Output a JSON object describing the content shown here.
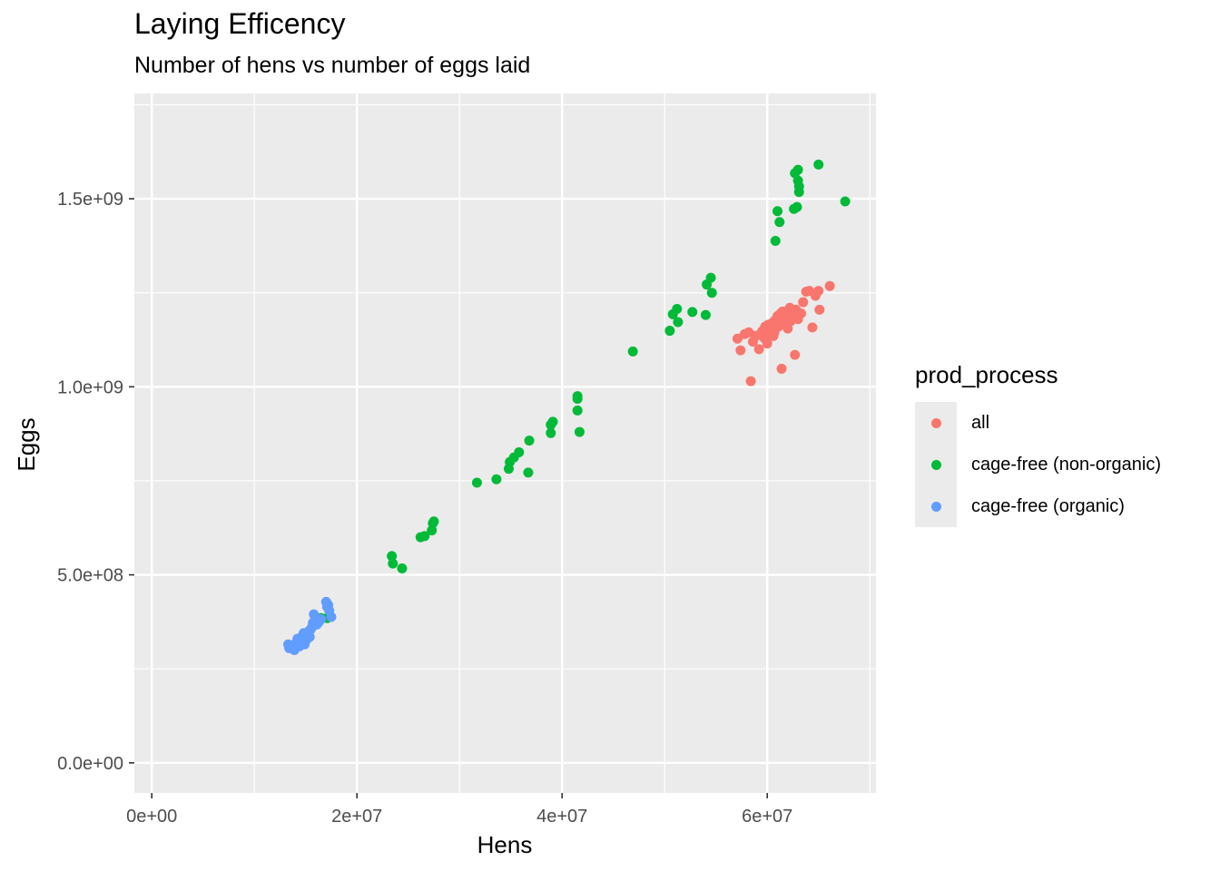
{
  "chart_data": {
    "type": "scatter",
    "title": "Laying Efficency",
    "subtitle": "Number of hens vs number of eggs laid",
    "xlabel": "Hens",
    "ylabel": "Eggs",
    "xlim": [
      -1700000,
      70600000
    ],
    "ylim": [
      -80000000,
      1780000000
    ],
    "xticks": [
      0,
      20000000,
      40000000,
      60000000
    ],
    "xtick_labels": [
      "0e+00",
      "2e+07",
      "4e+07",
      "6e+07"
    ],
    "xminor": [
      10000000,
      30000000,
      50000000,
      70000000
    ],
    "yticks": [
      0,
      500000000,
      1000000000,
      1500000000
    ],
    "ytick_labels": [
      "0.0e+00",
      "5.0e+08",
      "1.0e+09",
      "1.5e+09"
    ],
    "yminor": [
      250000000,
      750000000,
      1250000000,
      1750000000
    ],
    "grid": true,
    "legend": {
      "title": "prod_process",
      "placement": "right"
    },
    "series": [
      {
        "name": "all",
        "color": "#F8766D",
        "points": [
          [
            57100000,
            1128000000
          ],
          [
            57400000,
            1097000000
          ],
          [
            57800000,
            1140000000
          ],
          [
            58200000,
            1145000000
          ],
          [
            58400000,
            1015000000
          ],
          [
            58600000,
            1120000000
          ],
          [
            58900000,
            1136000000
          ],
          [
            59200000,
            1100000000
          ],
          [
            59500000,
            1148000000
          ],
          [
            59700000,
            1130000000
          ],
          [
            60000000,
            1115000000
          ],
          [
            60100000,
            1165000000
          ],
          [
            60300000,
            1150000000
          ],
          [
            60500000,
            1170000000
          ],
          [
            60600000,
            1135000000
          ],
          [
            60800000,
            1178000000
          ],
          [
            61000000,
            1188000000
          ],
          [
            61100000,
            1160000000
          ],
          [
            61300000,
            1195000000
          ],
          [
            61400000,
            1048000000
          ],
          [
            61600000,
            1172000000
          ],
          [
            61800000,
            1185000000
          ],
          [
            62000000,
            1155000000
          ],
          [
            62100000,
            1200000000
          ],
          [
            62300000,
            1175000000
          ],
          [
            62500000,
            1190000000
          ],
          [
            62700000,
            1085000000
          ],
          [
            62800000,
            1205000000
          ],
          [
            63000000,
            1180000000
          ],
          [
            63300000,
            1195000000
          ],
          [
            63500000,
            1225000000
          ],
          [
            63800000,
            1253000000
          ],
          [
            64100000,
            1255000000
          ],
          [
            64400000,
            1158000000
          ],
          [
            64700000,
            1242000000
          ],
          [
            65000000,
            1255000000
          ],
          [
            65100000,
            1205000000
          ],
          [
            66100000,
            1268000000
          ],
          [
            61500000,
            1200000000
          ],
          [
            62200000,
            1210000000
          ],
          [
            60700000,
            1145000000
          ],
          [
            59800000,
            1160000000
          ]
        ]
      },
      {
        "name": "cage-free (non-organic)",
        "color": "#00BA38",
        "points": [
          [
            16500000,
            385000000
          ],
          [
            17100000,
            385000000
          ],
          [
            23400000,
            550000000
          ],
          [
            23500000,
            530000000
          ],
          [
            24400000,
            517000000
          ],
          [
            26200000,
            600000000
          ],
          [
            26600000,
            603000000
          ],
          [
            27300000,
            618000000
          ],
          [
            27400000,
            637000000
          ],
          [
            27500000,
            642000000
          ],
          [
            31700000,
            745000000
          ],
          [
            33600000,
            754000000
          ],
          [
            34800000,
            782000000
          ],
          [
            34900000,
            800000000
          ],
          [
            35300000,
            812000000
          ],
          [
            35800000,
            826000000
          ],
          [
            36700000,
            772000000
          ],
          [
            36800000,
            857000000
          ],
          [
            38900000,
            877000000
          ],
          [
            38900000,
            899000000
          ],
          [
            39100000,
            907000000
          ],
          [
            41500000,
            937000000
          ],
          [
            41500000,
            968000000
          ],
          [
            41500000,
            975000000
          ],
          [
            41700000,
            880000000
          ],
          [
            46900000,
            1094000000
          ],
          [
            50500000,
            1149000000
          ],
          [
            50800000,
            1193000000
          ],
          [
            51200000,
            1207000000
          ],
          [
            51300000,
            1172000000
          ],
          [
            52700000,
            1199000000
          ],
          [
            54000000,
            1191000000
          ],
          [
            54100000,
            1272000000
          ],
          [
            54500000,
            1290000000
          ],
          [
            54600000,
            1250000000
          ],
          [
            60800000,
            1388000000
          ],
          [
            61000000,
            1467000000
          ],
          [
            61200000,
            1438000000
          ],
          [
            62600000,
            1473000000
          ],
          [
            62700000,
            1568000000
          ],
          [
            62900000,
            1478000000
          ],
          [
            63000000,
            1548000000
          ],
          [
            63000000,
            1577000000
          ],
          [
            63100000,
            1533000000
          ],
          [
            63100000,
            1518000000
          ],
          [
            65000000,
            1591000000
          ],
          [
            67600000,
            1493000000
          ]
        ]
      },
      {
        "name": "cage-free (organic)",
        "color": "#619CFF",
        "points": [
          [
            13300000,
            315000000
          ],
          [
            13400000,
            305000000
          ],
          [
            13700000,
            312000000
          ],
          [
            13900000,
            300000000
          ],
          [
            14100000,
            320000000
          ],
          [
            14200000,
            330000000
          ],
          [
            14400000,
            310000000
          ],
          [
            14600000,
            325000000
          ],
          [
            14700000,
            338000000
          ],
          [
            14900000,
            315000000
          ],
          [
            15000000,
            345000000
          ],
          [
            15100000,
            328000000
          ],
          [
            15300000,
            350000000
          ],
          [
            15400000,
            335000000
          ],
          [
            15600000,
            360000000
          ],
          [
            15700000,
            372000000
          ],
          [
            15800000,
            395000000
          ],
          [
            15900000,
            380000000
          ],
          [
            16100000,
            368000000
          ],
          [
            16300000,
            375000000
          ],
          [
            16500000,
            382000000
          ],
          [
            17000000,
            428000000
          ],
          [
            17100000,
            415000000
          ],
          [
            17200000,
            420000000
          ],
          [
            17300000,
            405000000
          ],
          [
            17500000,
            388000000
          ],
          [
            15500000,
            355000000
          ],
          [
            14800000,
            345000000
          ]
        ]
      }
    ]
  }
}
